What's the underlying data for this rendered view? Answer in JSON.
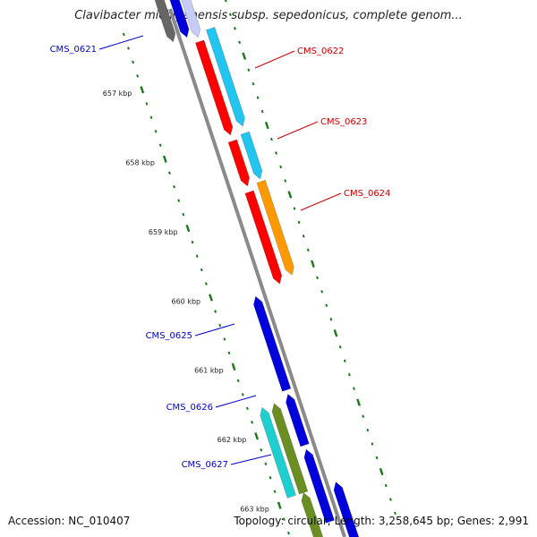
{
  "title": "Clavibacter michiganensis subsp. sepedonicus, complete genom...",
  "footer": {
    "accession": "Accession: NC_010407",
    "summary": "Topology: circular; Length: 3,258,645 bp; Genes: 2,991"
  },
  "colors": {
    "backbone": "#8a8a8a",
    "tick": "#1a7a1a",
    "forward_label": "#0000cc",
    "reverse_label": "#cc0000",
    "red": "#ff0000",
    "blue": "#0000dd",
    "cyan": "#22c4f0",
    "orange": "#ff9900",
    "olive": "#6b8e23",
    "teal": "#1fcfcf",
    "gray": "#666666",
    "lavender": "#c6ccf5"
  },
  "scale": {
    "unit": "kbp",
    "ticks": [
      {
        "label": "657 kbp"
      },
      {
        "label": "658 kbp"
      },
      {
        "label": "659 kbp"
      },
      {
        "label": "660 kbp"
      },
      {
        "label": "661 kbp"
      },
      {
        "label": "662 kbp"
      },
      {
        "label": "663 kbp"
      }
    ]
  },
  "genes": [
    {
      "label": "CMS_0621",
      "strand": "forward"
    },
    {
      "label": "CMS_0622",
      "strand": "reverse"
    },
    {
      "label": "CMS_0623",
      "strand": "reverse"
    },
    {
      "label": "CMS_0624",
      "strand": "reverse"
    },
    {
      "label": "CMS_0625",
      "strand": "forward"
    },
    {
      "label": "CMS_0626",
      "strand": "forward"
    },
    {
      "label": "CMS_0627",
      "strand": "forward"
    }
  ]
}
